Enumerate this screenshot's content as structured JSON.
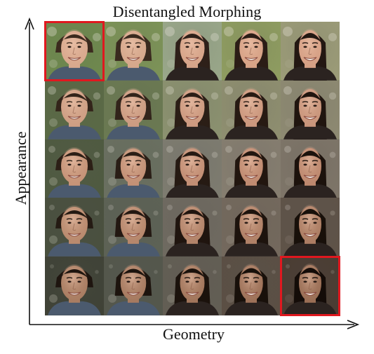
{
  "figure": {
    "title": "Disentangled Morphing",
    "x_axis_label": "Geometry",
    "y_axis_label": "Appearance"
  },
  "grid": {
    "rows": 5,
    "cols": 5,
    "highlighted_cells": [
      {
        "row": 0,
        "col": 0
      },
      {
        "row": 4,
        "col": 4
      }
    ],
    "colors": {
      "highlight": "#e0181f",
      "axis": "#111111"
    },
    "background_tones": [
      [
        "#6f8a4e",
        "#7d9457",
        "#9aa88a",
        "#8f9d60",
        "#9c9c78"
      ],
      [
        "#5a6a45",
        "#6b7a52",
        "#8c9270",
        "#8f8f70",
        "#8e8a72"
      ],
      [
        "#4f5a40",
        "#6a7060",
        "#7e7c70",
        "#867e70",
        "#7e7568"
      ],
      [
        "#49503e",
        "#5d6255",
        "#6f6a60",
        "#74695d",
        "#5f5348"
      ],
      [
        "#3f4236",
        "#54574c",
        "#635e54",
        "#5b4f44",
        "#4a3c32"
      ]
    ],
    "hair_tones": [
      [
        "#3b2a1e",
        "#3a2a1f",
        "#2e2019",
        "#2b1d16",
        "#231712"
      ],
      [
        "#33241a",
        "#32241b",
        "#2b1e16",
        "#271a13",
        "#20150f"
      ],
      [
        "#2c1f16",
        "#2a1e16",
        "#261a13",
        "#22160f",
        "#1c120c"
      ],
      [
        "#241a13",
        "#231812",
        "#20150f",
        "#1d130d",
        "#18100a"
      ],
      [
        "#1e150f",
        "#1d140e",
        "#1b120c",
        "#18100a",
        "#140c08"
      ]
    ],
    "skin_tones": [
      [
        "#d9a98e",
        "#d6a88c",
        "#d7a58a",
        "#d8a387",
        "#d6a085"
      ],
      [
        "#cf9f84",
        "#cc9c82",
        "#cd9a80",
        "#cc987e",
        "#c9957b"
      ],
      [
        "#c69478",
        "#c39176",
        "#c28e74",
        "#c08b71",
        "#bd886e"
      ],
      [
        "#b98a6e",
        "#b6876c",
        "#b3846a",
        "#b08167",
        "#ac7d63"
      ],
      [
        "#a97d62",
        "#a67a60",
        "#a2765c",
        "#9e7259",
        "#9a6e55"
      ]
    ]
  }
}
